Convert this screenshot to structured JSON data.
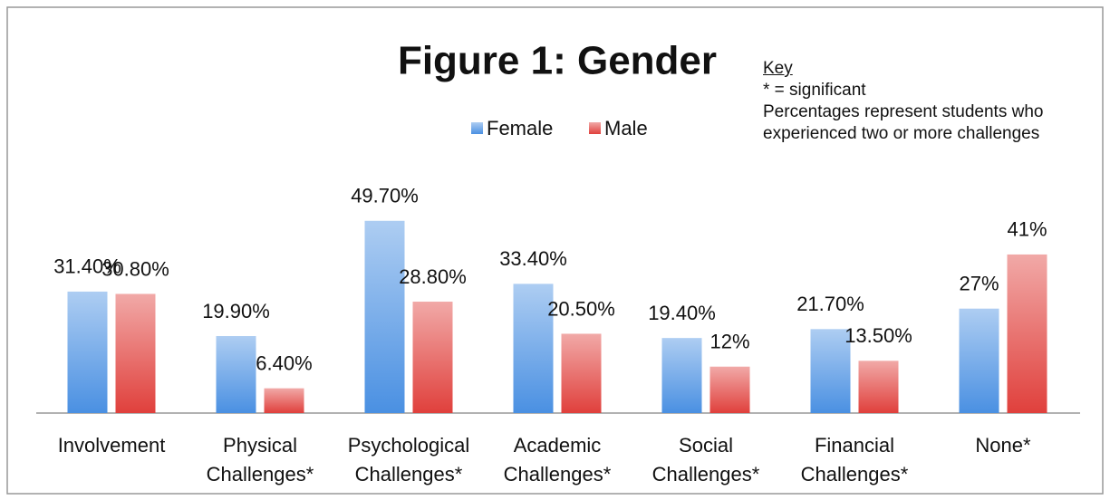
{
  "chart_data": {
    "type": "bar",
    "title": "Figure 1: Gender",
    "key_title": "Key",
    "key_lines": [
      "* = significant",
      "Percentages represent students who experienced two or more challenges"
    ],
    "categories": [
      "Involvement",
      "Physical Challenges*",
      "Psychological Challenges*",
      "Academic Challenges*",
      "Social Challenges*",
      "Financial Challenges*",
      "None*"
    ],
    "series": [
      {
        "name": "Female",
        "color": "#4a90e2",
        "values": [
          31.4,
          19.9,
          49.7,
          33.4,
          19.4,
          21.7,
          27
        ],
        "value_labels": [
          "31.40%",
          "19.90%",
          "49.70%",
          "33.40%",
          "19.40%",
          "21.70%",
          "27%"
        ]
      },
      {
        "name": "Male",
        "color": "#e0403c",
        "values": [
          30.8,
          6.4,
          28.8,
          20.5,
          12,
          13.5,
          41
        ],
        "value_labels": [
          "30.80%",
          "6.40%",
          "28.80%",
          "20.50%",
          "12%",
          "13.50%",
          "41%"
        ]
      }
    ],
    "legend": "top"
  }
}
